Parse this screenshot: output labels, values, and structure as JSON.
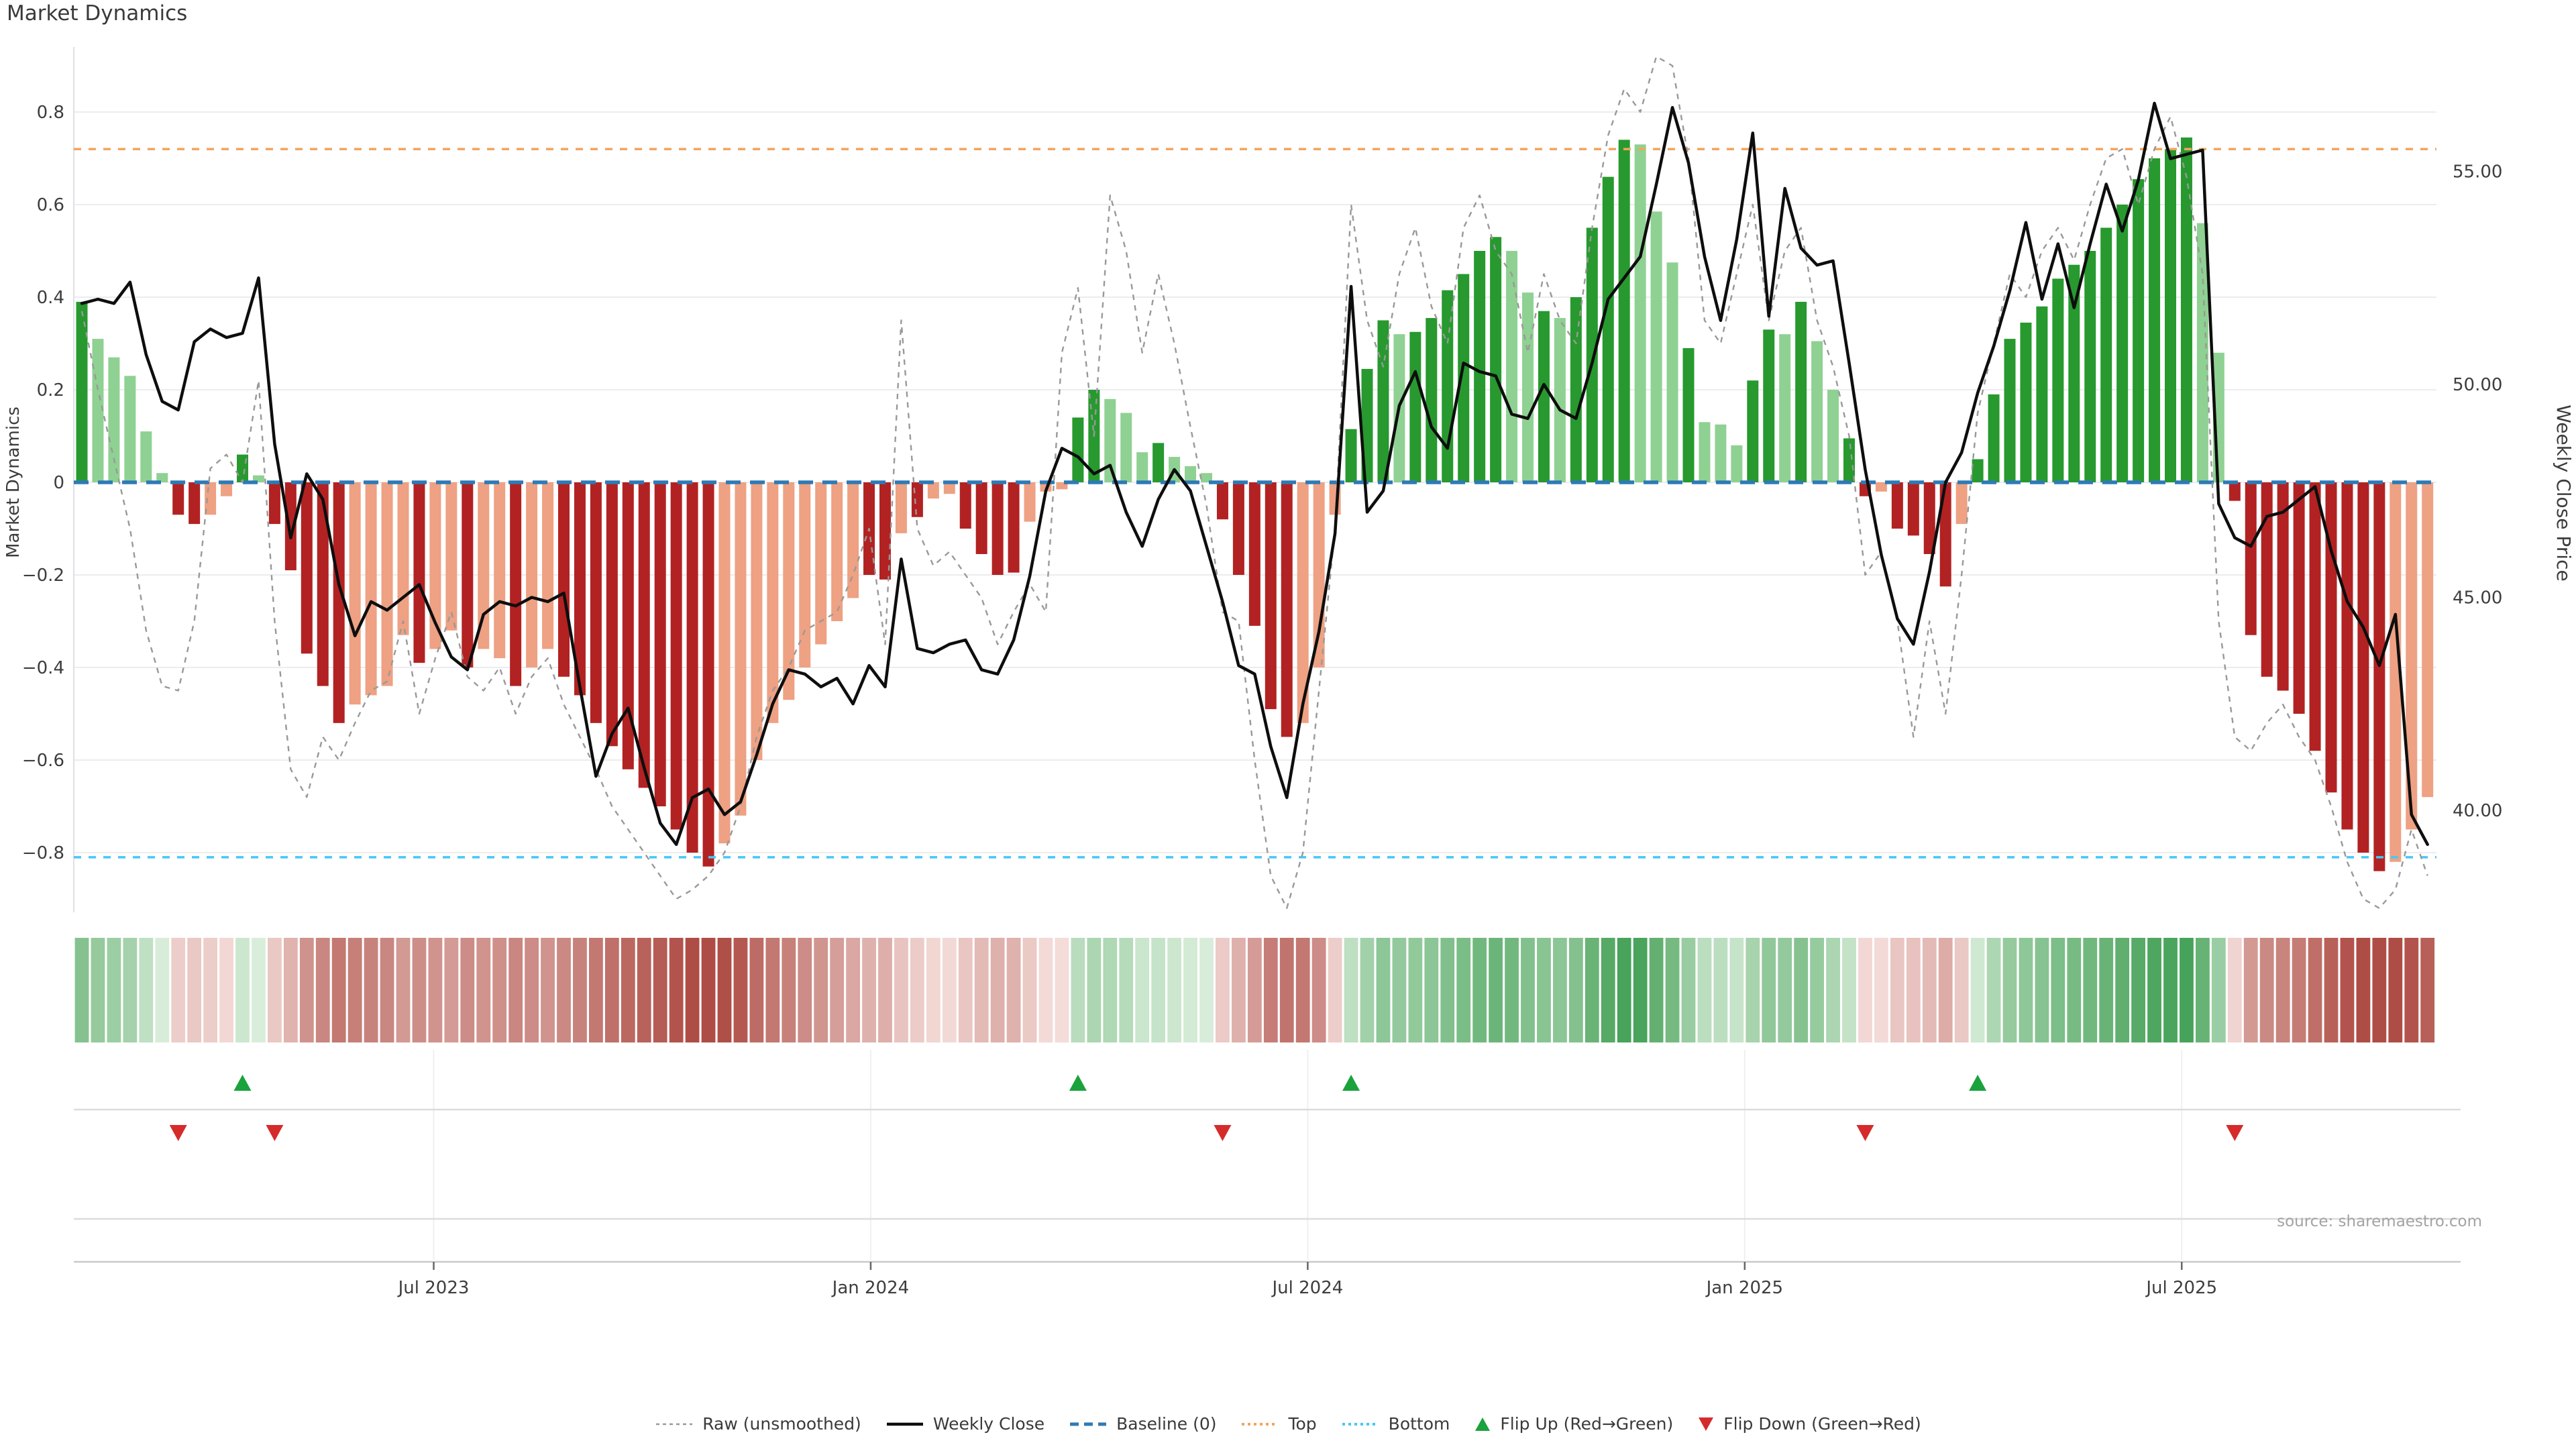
{
  "title": "Market Dynamics",
  "source_note": "source: sharemaestro.com",
  "axes": {
    "left_label": "Market Dynamics",
    "right_label": "Weekly Close Price",
    "left_ticks": [
      {
        "value": 0.8,
        "label": "0.8"
      },
      {
        "value": 0.6,
        "label": "0.6"
      },
      {
        "value": 0.4,
        "label": "0.4"
      },
      {
        "value": 0.2,
        "label": "0.2"
      },
      {
        "value": 0.0,
        "label": "0"
      },
      {
        "value": -0.2,
        "label": "−0.2"
      },
      {
        "value": -0.4,
        "label": "−0.4"
      },
      {
        "value": -0.6,
        "label": "−0.6"
      },
      {
        "value": -0.8,
        "label": "−0.8"
      }
    ],
    "right_ticks": [
      {
        "value": 55,
        "label": "55.00"
      },
      {
        "value": 50,
        "label": "50.00"
      },
      {
        "value": 45,
        "label": "45.00"
      },
      {
        "value": 40,
        "label": "40.00"
      }
    ],
    "x_ticks": [
      {
        "pos": 21.9,
        "label": "Jul 2023"
      },
      {
        "pos": 49.1,
        "label": "Jan 2024"
      },
      {
        "pos": 76.3,
        "label": "Jul 2024"
      },
      {
        "pos": 103.5,
        "label": "Jan 2025"
      },
      {
        "pos": 130.7,
        "label": "Jul 2025"
      }
    ]
  },
  "chart_data": {
    "type": "combo",
    "description": "Weekly market-dynamics oscillator bars with heatmap strip, flip markers, raw oscillator line and weekly close price line",
    "x_unit": "week",
    "n_weeks": 147,
    "ylim_left": [
      -0.9,
      0.9
    ],
    "ylim_right": [
      38.5,
      57.5
    ],
    "grid": true,
    "thresholds": {
      "baseline": 0,
      "top": 0.72,
      "bottom": -0.81
    },
    "oscillator": [
      0.39,
      0.31,
      0.27,
      0.23,
      0.11,
      0.02,
      -0.07,
      -0.09,
      -0.07,
      -0.03,
      0.06,
      0.015,
      -0.09,
      -0.19,
      -0.37,
      -0.44,
      -0.52,
      -0.48,
      -0.46,
      -0.44,
      -0.33,
      -0.39,
      -0.36,
      -0.32,
      -0.4,
      -0.36,
      -0.38,
      -0.44,
      -0.4,
      -0.36,
      -0.42,
      -0.46,
      -0.52,
      -0.57,
      -0.62,
      -0.66,
      -0.7,
      -0.75,
      -0.8,
      -0.83,
      -0.78,
      -0.72,
      -0.6,
      -0.52,
      -0.47,
      -0.4,
      -0.35,
      -0.3,
      -0.25,
      -0.2,
      -0.21,
      -0.11,
      -0.075,
      -0.035,
      -0.025,
      -0.1,
      -0.155,
      -0.2,
      -0.195,
      -0.085,
      -0.02,
      -0.015,
      0.14,
      0.2,
      0.18,
      0.15,
      0.065,
      0.085,
      0.055,
      0.035,
      0.02,
      -0.08,
      -0.2,
      -0.31,
      -0.49,
      -0.55,
      -0.52,
      -0.4,
      -0.07,
      0.115,
      0.245,
      0.35,
      0.32,
      0.325,
      0.355,
      0.415,
      0.45,
      0.5,
      0.53,
      0.5,
      0.41,
      0.37,
      0.355,
      0.4,
      0.55,
      0.66,
      0.74,
      0.73,
      0.585,
      0.475,
      0.29,
      0.13,
      0.125,
      0.08,
      0.22,
      0.33,
      0.32,
      0.39,
      0.305,
      0.2,
      0.095,
      -0.03,
      -0.02,
      -0.1,
      -0.115,
      -0.155,
      -0.225,
      -0.09,
      0.05,
      0.19,
      0.31,
      0.345,
      0.38,
      0.44,
      0.47,
      0.5,
      0.55,
      0.6,
      0.655,
      0.7,
      0.72,
      0.745,
      0.56,
      0.28,
      -0.04,
      -0.33,
      -0.42,
      -0.45,
      -0.5,
      -0.58,
      -0.67,
      -0.75,
      -0.8,
      -0.84,
      -0.82,
      -0.75,
      -0.68
    ],
    "strong": [
      1,
      0,
      0,
      0,
      0,
      0,
      1,
      1,
      0,
      0,
      1,
      0,
      1,
      1,
      1,
      1,
      1,
      0,
      0,
      0,
      0,
      1,
      0,
      0,
      1,
      0,
      0,
      1,
      0,
      0,
      1,
      1,
      1,
      1,
      1,
      1,
      1,
      1,
      1,
      1,
      0,
      0,
      0,
      0,
      0,
      0,
      0,
      0,
      0,
      1,
      1,
      0,
      1,
      0,
      0,
      1,
      1,
      1,
      1,
      0,
      0,
      0,
      1,
      1,
      0,
      0,
      0,
      1,
      0,
      0,
      0,
      1,
      1,
      1,
      1,
      1,
      0,
      0,
      0,
      1,
      1,
      1,
      0,
      1,
      1,
      1,
      1,
      1,
      1,
      0,
      0,
      1,
      0,
      1,
      1,
      1,
      1,
      0,
      0,
      0,
      1,
      0,
      0,
      0,
      1,
      1,
      0,
      1,
      0,
      0,
      1,
      1,
      0,
      1,
      1,
      1,
      1,
      0,
      1,
      1,
      1,
      1,
      1,
      1,
      1,
      1,
      1,
      1,
      1,
      1,
      1,
      1,
      0,
      0,
      1,
      1,
      1,
      1,
      1,
      1,
      1,
      1,
      1,
      1,
      0,
      0,
      0
    ],
    "weekly_close": [
      51.9,
      52.0,
      51.9,
      52.4,
      50.7,
      49.6,
      49.4,
      51.0,
      51.3,
      51.1,
      51.2,
      52.5,
      48.6,
      46.4,
      47.9,
      47.3,
      45.3,
      44.1,
      44.9,
      44.7,
      45.0,
      45.3,
      44.4,
      43.6,
      43.3,
      44.6,
      44.9,
      44.8,
      45.0,
      44.9,
      45.1,
      42.9,
      40.8,
      41.8,
      42.4,
      41.0,
      39.7,
      39.2,
      40.3,
      40.5,
      39.9,
      40.2,
      41.3,
      42.5,
      43.3,
      43.2,
      42.9,
      43.1,
      42.5,
      43.4,
      42.9,
      45.9,
      43.8,
      43.7,
      43.9,
      44.0,
      43.3,
      43.2,
      44.0,
      45.5,
      47.5,
      48.5,
      48.3,
      47.9,
      48.1,
      47.0,
      46.2,
      47.3,
      48.0,
      47.5,
      46.2,
      44.9,
      43.4,
      43.2,
      41.5,
      40.3,
      42.5,
      44.2,
      46.5,
      52.3,
      47.0,
      47.5,
      49.5,
      50.3,
      49.0,
      48.5,
      50.5,
      50.3,
      50.2,
      49.3,
      49.2,
      50.0,
      49.4,
      49.2,
      50.5,
      52.0,
      52.5,
      53.0,
      54.7,
      56.5,
      55.2,
      53.0,
      51.5,
      53.4,
      55.9,
      51.6,
      54.6,
      53.2,
      52.8,
      52.9,
      50.5,
      48.0,
      46.0,
      44.5,
      43.9,
      45.6,
      47.7,
      48.4,
      49.8,
      50.9,
      52.2,
      53.8,
      52.0,
      53.3,
      51.8,
      53.3,
      54.7,
      53.6,
      54.8,
      56.6,
      55.3,
      55.4,
      55.5,
      47.2,
      46.4,
      46.2,
      46.9,
      47.0,
      47.3,
      47.6,
      46.1,
      44.9,
      44.3,
      43.4,
      44.6,
      39.9,
      39.2
    ],
    "raw_unsmoothed": [
      0.37,
      0.2,
      0.05,
      -0.1,
      -0.32,
      -0.44,
      -0.45,
      -0.3,
      0.03,
      0.06,
      0.0,
      0.22,
      -0.3,
      -0.62,
      -0.68,
      -0.55,
      -0.6,
      -0.52,
      -0.45,
      -0.43,
      -0.3,
      -0.5,
      -0.38,
      -0.28,
      -0.42,
      -0.45,
      -0.4,
      -0.5,
      -0.42,
      -0.38,
      -0.48,
      -0.55,
      -0.62,
      -0.7,
      -0.75,
      -0.8,
      -0.85,
      -0.9,
      -0.88,
      -0.85,
      -0.8,
      -0.7,
      -0.55,
      -0.45,
      -0.4,
      -0.32,
      -0.3,
      -0.28,
      -0.2,
      -0.1,
      -0.35,
      0.35,
      -0.1,
      -0.18,
      -0.15,
      -0.2,
      -0.25,
      -0.35,
      -0.28,
      -0.22,
      -0.28,
      0.28,
      0.42,
      0.1,
      0.62,
      0.5,
      0.28,
      0.45,
      0.3,
      0.12,
      -0.05,
      -0.28,
      -0.3,
      -0.6,
      -0.85,
      -0.92,
      -0.8,
      -0.45,
      -0.1,
      0.6,
      0.35,
      0.25,
      0.45,
      0.55,
      0.38,
      0.3,
      0.55,
      0.62,
      0.5,
      0.45,
      0.28,
      0.45,
      0.35,
      0.3,
      0.55,
      0.75,
      0.85,
      0.8,
      0.92,
      0.9,
      0.7,
      0.35,
      0.3,
      0.45,
      0.6,
      0.35,
      0.5,
      0.55,
      0.35,
      0.25,
      0.1,
      -0.2,
      -0.15,
      -0.3,
      -0.55,
      -0.3,
      -0.5,
      -0.2,
      0.15,
      0.3,
      0.45,
      0.4,
      0.5,
      0.55,
      0.48,
      0.6,
      0.7,
      0.72,
      0.6,
      0.72,
      0.79,
      0.66,
      0.45,
      -0.3,
      -0.55,
      -0.58,
      -0.52,
      -0.48,
      -0.55,
      -0.6,
      -0.7,
      -0.82,
      -0.9,
      -0.92,
      -0.88,
      -0.75,
      -0.85
    ],
    "flip_up_weeks": [
      10,
      62,
      79,
      118
    ],
    "flip_down_weeks": [
      6,
      12,
      71,
      111,
      134
    ]
  },
  "legend": {
    "items": [
      {
        "label": "Raw (unsmoothed)",
        "swatch": "raw"
      },
      {
        "label": "Weekly Close",
        "swatch": "close"
      },
      {
        "label": "Baseline (0)",
        "swatch": "baseline"
      },
      {
        "label": "Top",
        "swatch": "top"
      },
      {
        "label": "Bottom",
        "swatch": "bottom"
      },
      {
        "label": "Flip Up (Red→Green)",
        "swatch": "flip_up"
      },
      {
        "label": "Flip Down (Green→Red)",
        "swatch": "flip_down"
      }
    ]
  },
  "colors": {
    "bar_pos_strong": "#27992f",
    "bar_pos_light": "#8fd192",
    "bar_neg_strong": "#b22222",
    "bar_neg_light": "#eea183",
    "baseline": "#2e7ab6",
    "top": "#f2a55e",
    "bottom": "#45c8f5",
    "raw": "#999999",
    "close": "#0e0e0e",
    "flip_up": "#1aa23c",
    "flip_down": "#d62b2b",
    "grid": "#ececf1",
    "axis_text": "#3d3d3d",
    "source_text": "#a3a3a3",
    "divider": "#dcdcdc",
    "axis_line": "#c9c9c9"
  }
}
